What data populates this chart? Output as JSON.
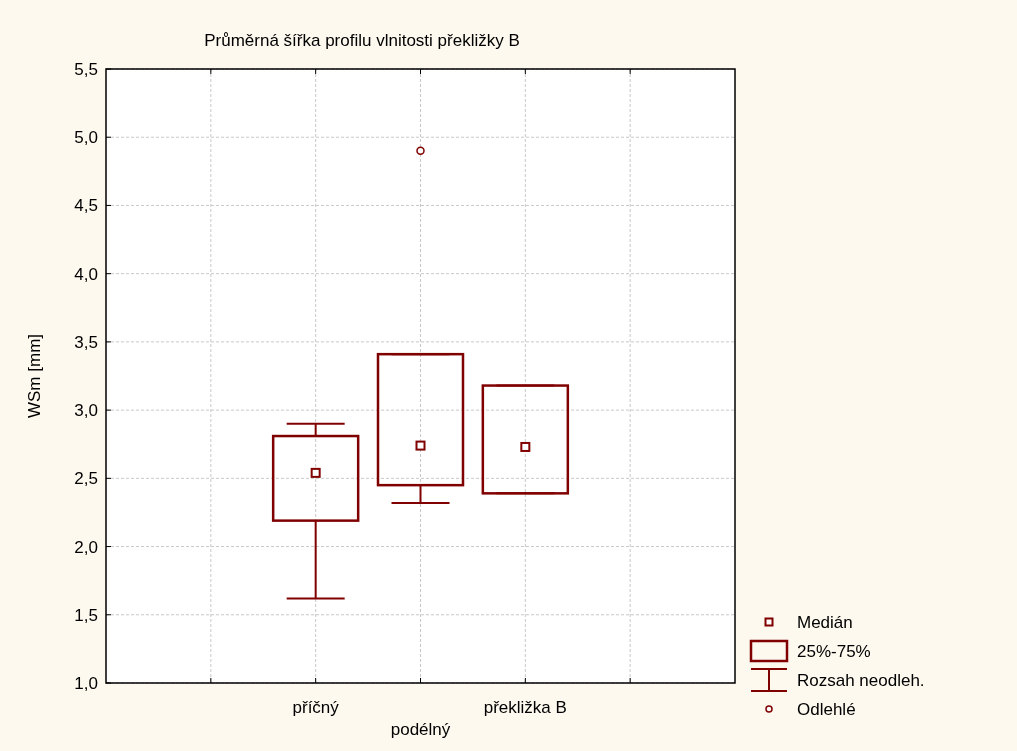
{
  "chart_data": {
    "type": "box",
    "title": "Průměrná šířka profilu vlnitosti překližky B",
    "ylabel": "WSm [mm]",
    "categories": [
      null,
      "příčný",
      "podélný",
      "překližka B",
      null
    ],
    "boxes": [
      null,
      {
        "low": 1.62,
        "q1": 2.19,
        "median": 2.54,
        "q3": 2.81,
        "high": 2.9
      },
      {
        "low": 2.32,
        "q1": 2.45,
        "median": 2.74,
        "q3": 3.41,
        "high": 3.41,
        "outliers": [
          4.9
        ]
      },
      {
        "low": 2.39,
        "q1": 2.39,
        "median": 2.73,
        "q3": 3.18,
        "high": 3.18
      },
      null
    ],
    "color": "#800000",
    "ylim": [
      1.0,
      5.5
    ],
    "yticks": [
      {
        "value": 1.0,
        "label": "1,0"
      },
      {
        "value": 1.5,
        "label": "1,5"
      },
      {
        "value": 2.0,
        "label": "2,0"
      },
      {
        "value": 2.5,
        "label": "2,5"
      },
      {
        "value": 3.0,
        "label": "3,0"
      },
      {
        "value": 3.5,
        "label": "3,5"
      },
      {
        "value": 4.0,
        "label": "4,0"
      },
      {
        "value": 4.5,
        "label": "4,5"
      },
      {
        "value": 5.0,
        "label": "5,0"
      },
      {
        "value": 5.5,
        "label": "5,5"
      }
    ],
    "grid": true,
    "annotations": [
      "Medián",
      "25%-75%",
      "Rozsah neodleh.",
      "Odlehlé"
    ]
  }
}
